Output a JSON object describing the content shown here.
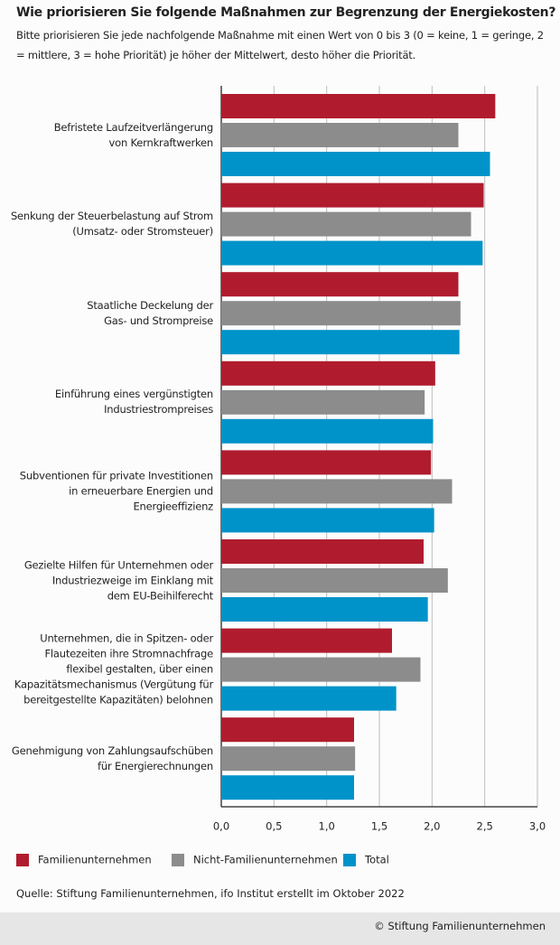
{
  "chart_data": {
    "type": "bar",
    "orientation": "horizontal",
    "title": "Wie priorisieren Sie folgende Maßnahmen zur Begrenzung der Energiekosten?",
    "subtitle": "Bitte priorisieren Sie jede nachfolgende Maßnahme mit einen Wert von 0 bis 3 (0 = keine, 1 = geringe, 2 = mittlere, 3 = hohe Priorität) je höher der Mittelwert, desto höher die Priorität.",
    "categories": [
      "Befristete Laufzeitverlängerung\nvon Kernkraftwerken",
      "Senkung der Steuerbelastung auf Strom\n(Umsatz- oder Stromsteuer)",
      "Staatliche Deckelung der\nGas- und Strompreise",
      "Einführung eines vergünstigten\nIndustriestrompreises",
      "Subventionen für private Investitionen\nin erneuerbare Energien und\nEnergieeffizienz",
      "Gezielte Hilfen für Unternehmen oder\nIndustriezweige im Einklang mit\ndem EU-Beihilferecht",
      "Unternehmen, die in Spitzen- oder\nFlautezeiten ihre Stromnachfrage\nflexibel gestalten, über einen\nKapazitätsmechanismus (Vergütung für\nbereitgestellte Kapazitäten) belohnen",
      "Genehmigung von Zahlungsaufschüben\nfür Energierechnungen"
    ],
    "series": [
      {
        "name": "Familienunternehmen",
        "color": "#b01c2e",
        "values": [
          2.6,
          2.49,
          2.25,
          2.03,
          1.99,
          1.92,
          1.62,
          1.26
        ]
      },
      {
        "name": "Nicht-Familienunternehmen",
        "color": "#8c8c8c",
        "values": [
          2.25,
          2.37,
          2.27,
          1.93,
          2.19,
          2.15,
          1.89,
          1.27
        ]
      },
      {
        "name": "Total",
        "color": "#0093c9",
        "values": [
          2.55,
          2.48,
          2.26,
          2.01,
          2.02,
          1.96,
          1.66,
          1.26
        ]
      }
    ],
    "xlim": [
      0,
      3
    ],
    "xticks": [
      {
        "value": 0,
        "label": "0,0"
      },
      {
        "value": 0.5,
        "label": "0,5"
      },
      {
        "value": 1,
        "label": "1,0"
      },
      {
        "value": 1.5,
        "label": "1,5"
      },
      {
        "value": 2,
        "label": "2,0"
      },
      {
        "value": 2.5,
        "label": "2,5"
      },
      {
        "value": 3,
        "label": "3,0"
      }
    ],
    "grid": true,
    "source": "Quelle: Stiftung Familienunternehmen, ifo Institut erstellt im Oktober 2022",
    "copyright": "© Stiftung Familienunternehmen"
  }
}
